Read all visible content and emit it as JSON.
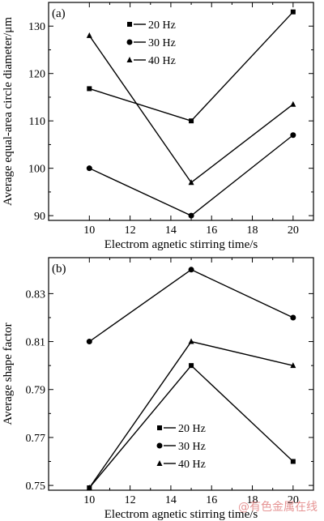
{
  "chart_data": [
    {
      "type": "line",
      "panel_label": "(a)",
      "xlabel": "Electrom agnetic stirring time/s",
      "ylabel": "Average equal-area circle diameter/μm",
      "x": [
        10,
        15,
        20
      ],
      "xlim": [
        8,
        21
      ],
      "ylim": [
        89,
        135
      ],
      "xticks": [
        10,
        12,
        14,
        16,
        18,
        20
      ],
      "yticks": [
        90,
        100,
        110,
        120,
        130
      ],
      "xtick_labels": [
        "10",
        "12",
        "14",
        "16",
        "18",
        "20"
      ],
      "ytick_labels": [
        "90",
        "100",
        "110",
        "120",
        "130"
      ],
      "legend_position": "top-left",
      "series": [
        {
          "name": "20 Hz",
          "marker": "square",
          "values": [
            116.8,
            110.0,
            133.0
          ]
        },
        {
          "name": "30 Hz",
          "marker": "circle",
          "values": [
            100.0,
            90.0,
            107.0
          ]
        },
        {
          "name": "40 Hz",
          "marker": "triangle",
          "values": [
            128.0,
            97.0,
            113.5
          ]
        }
      ]
    },
    {
      "type": "line",
      "panel_label": "(b)",
      "xlabel": "Electrom agnetic stirring time/s",
      "ylabel": "Average shape factor",
      "x": [
        10,
        15,
        20
      ],
      "xlim": [
        8,
        21
      ],
      "ylim": [
        0.748,
        0.845
      ],
      "xticks": [
        10,
        12,
        14,
        16,
        18,
        20
      ],
      "yticks": [
        0.75,
        0.77,
        0.79,
        0.81,
        0.83
      ],
      "xtick_labels": [
        "10",
        "12",
        "14",
        "16",
        "18",
        "20"
      ],
      "ytick_labels": [
        "0.75",
        "0.77",
        "0.79",
        "0.81",
        "0.83"
      ],
      "legend_position": "bottom-left",
      "series": [
        {
          "name": "20 Hz",
          "marker": "square",
          "values": [
            0.749,
            0.8,
            0.76
          ]
        },
        {
          "name": "30 Hz",
          "marker": "circle",
          "values": [
            0.81,
            0.84,
            0.82
          ]
        },
        {
          "name": "40 Hz",
          "marker": "triangle",
          "values": [
            0.749,
            0.81,
            0.8
          ]
        }
      ]
    }
  ],
  "watermark": "@有色金属在线"
}
